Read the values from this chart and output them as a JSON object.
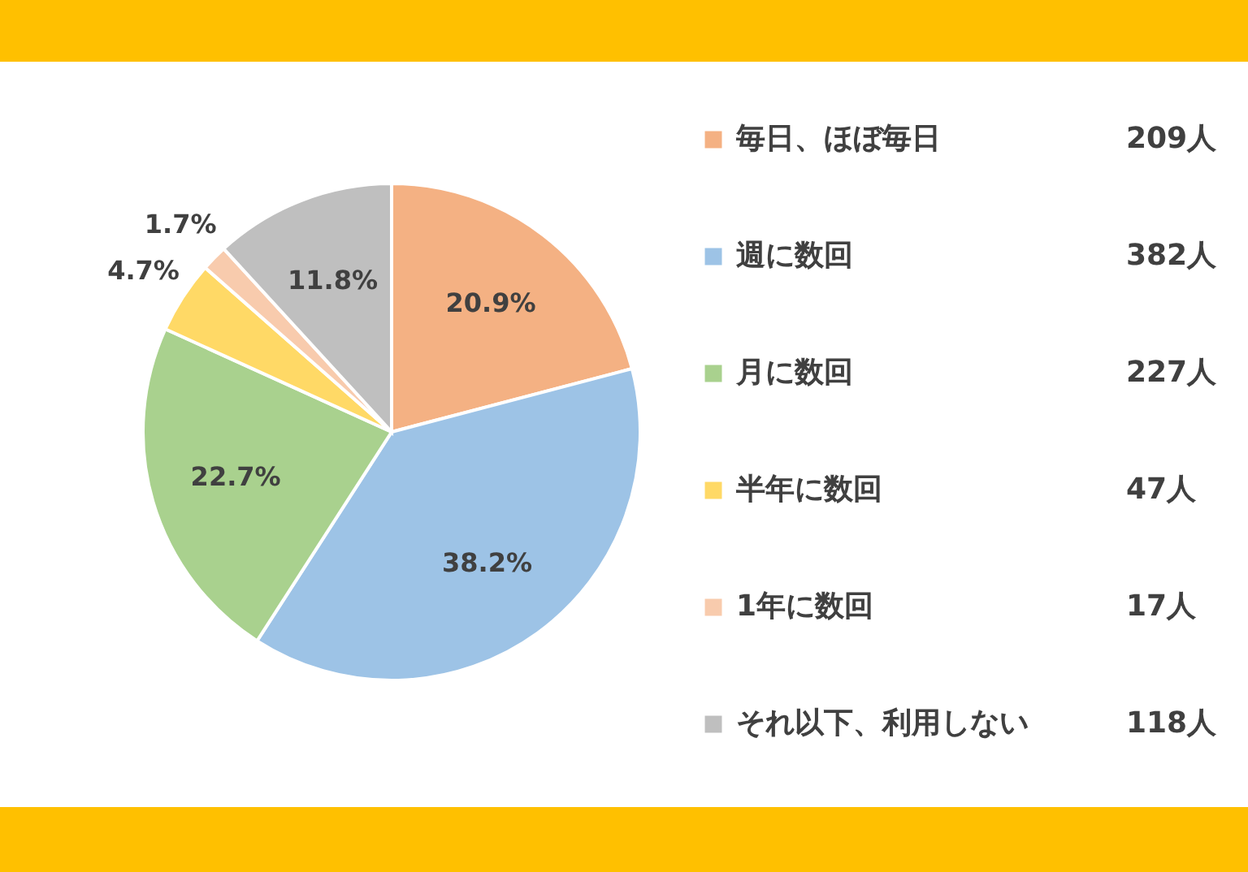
{
  "chart_data": {
    "type": "pie",
    "categories": [
      "毎日、ほぼ毎日",
      "週に数回",
      "月に数回",
      "半年に数回",
      "1年に数回",
      "それ以下、利用しない"
    ],
    "values": [
      20.9,
      38.2,
      22.7,
      4.7,
      1.7,
      11.8
    ],
    "colors": [
      "#f4b183",
      "#9dc3e6",
      "#a9d18e",
      "#ffd966",
      "#f8cbad",
      "#bfbfbf"
    ],
    "value_labels": [
      "20.9%",
      "38.2%",
      "22.7%",
      "4.7%",
      "1.7%",
      "11.8%"
    ],
    "annotations": [
      "209人",
      "382人",
      "227人",
      "47人",
      "17人",
      "118人"
    ],
    "legend": "right"
  }
}
